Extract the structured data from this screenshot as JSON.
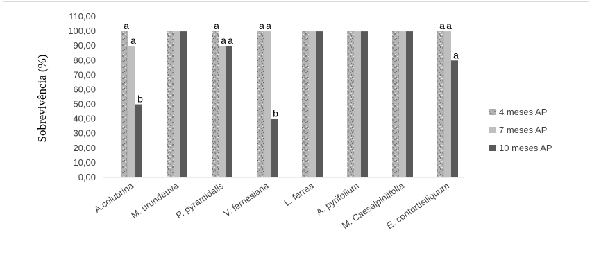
{
  "chart_data": {
    "type": "bar",
    "title": "",
    "ylabel": "Sobrevivência (%)",
    "xlabel": "",
    "ylim": [
      0,
      110
    ],
    "yticks": [
      "0,00",
      "10,00",
      "20,00",
      "30,00",
      "40,00",
      "50,00",
      "60,00",
      "70,00",
      "80,00",
      "90,00",
      "100,00",
      "110,00"
    ],
    "categories": [
      "A.colubrina",
      "M. urundeuva",
      "P. pyramidalis",
      "V. farnesiana",
      "L. ferrea",
      "A. pyrifolium",
      "M. Caesalpiniifolia",
      "E. contortisiliquum"
    ],
    "series": [
      {
        "name": "4 meses AP",
        "color": "#a6a6a6",
        "pattern": "granite",
        "values": [
          100,
          100,
          100,
          100,
          100,
          100,
          100,
          100
        ],
        "labels": [
          "a",
          "",
          "a",
          "a",
          "",
          "",
          "",
          "a"
        ]
      },
      {
        "name": "7 meses AP",
        "color": "#bfbfbf",
        "values": [
          90,
          100,
          90,
          100,
          100,
          100,
          100,
          100
        ],
        "labels": [
          "a",
          "",
          "a",
          "a",
          "",
          "",
          "",
          "a"
        ]
      },
      {
        "name": "10 meses AP",
        "color": "#595959",
        "values": [
          50,
          100,
          90,
          40,
          100,
          100,
          100,
          80
        ],
        "labels": [
          "b",
          "",
          "a",
          "b",
          "",
          "",
          "",
          "a"
        ]
      }
    ],
    "legend": "right",
    "grid": false
  }
}
